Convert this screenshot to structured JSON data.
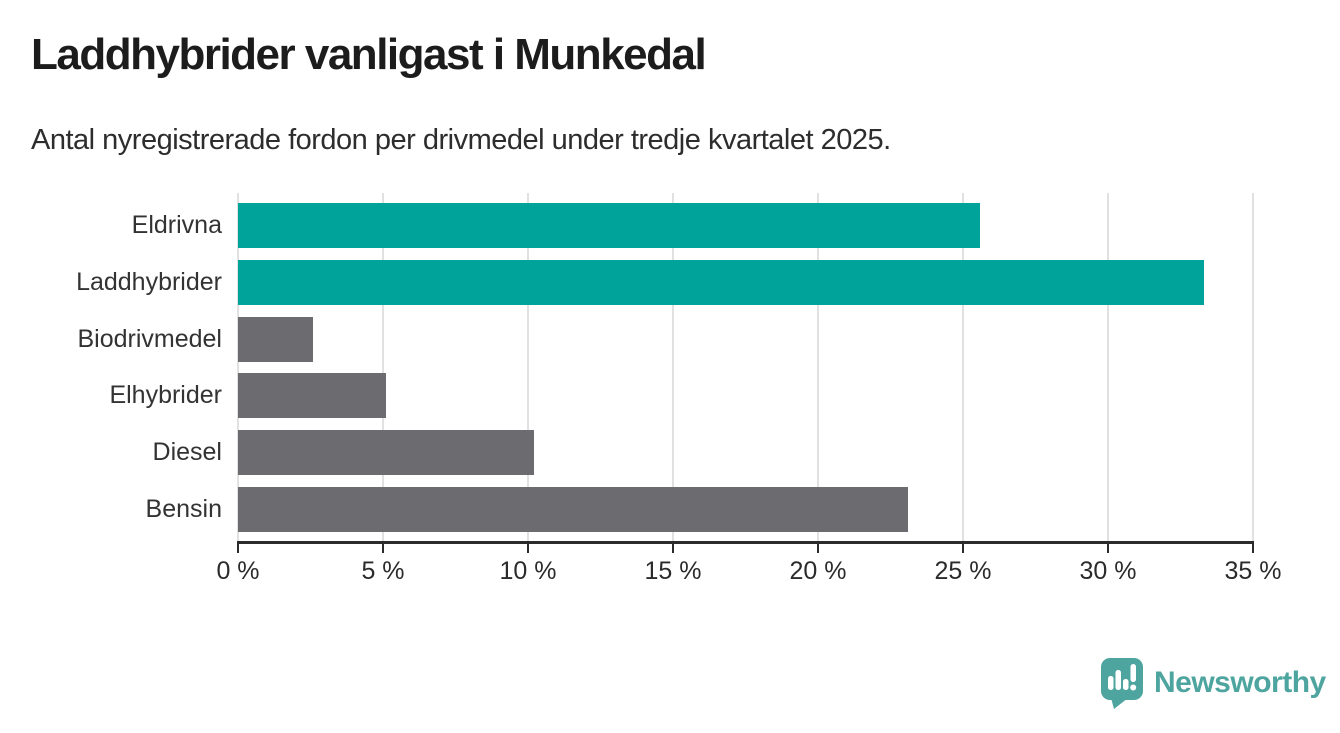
{
  "header": {
    "title": "Laddhybrider vanligast i Munkedal",
    "subtitle": "Antal nyregistrerade fordon per drivmedel under tredje kvartalet 2025."
  },
  "chart_data": {
    "type": "bar",
    "orientation": "horizontal",
    "title": "Laddhybrider vanligast i Munkedal",
    "subtitle": "Antal nyregistrerade fordon per drivmedel under tredje kvartalet 2025.",
    "categories": [
      "Eldrivna",
      "Laddhybrider",
      "Biodrivmedel",
      "Elhybrider",
      "Diesel",
      "Bensin"
    ],
    "values": [
      25.6,
      33.3,
      2.6,
      5.1,
      10.2,
      23.1
    ],
    "unit": "%",
    "bar_colors": [
      "#00a39a",
      "#00a39a",
      "#6c6c70",
      "#6c6c70",
      "#6c6c70",
      "#6c6c70"
    ],
    "highlight_color": "#00a39a",
    "default_color": "#6c6c70",
    "xlabel": "",
    "ylabel": "",
    "xlim": [
      0,
      35
    ],
    "x_ticks": [
      0,
      5,
      10,
      15,
      20,
      25,
      30,
      35
    ],
    "x_tick_labels": [
      "0 %",
      "5 %",
      "10 %",
      "15 %",
      "20 %",
      "25 %",
      "30 %",
      "35 %"
    ],
    "grid": "vertical",
    "legend": "none"
  },
  "footer": {
    "brand": "Newsworthy",
    "logo_icon": "bar-chart-speech-bubble-icon",
    "brand_color": "#4ea59f"
  },
  "colors": {
    "background": "#ffffff",
    "axis": "#2b2b2b",
    "gridline": "#e1e1e1",
    "text": "#333333",
    "title": "#1c1c1c"
  }
}
